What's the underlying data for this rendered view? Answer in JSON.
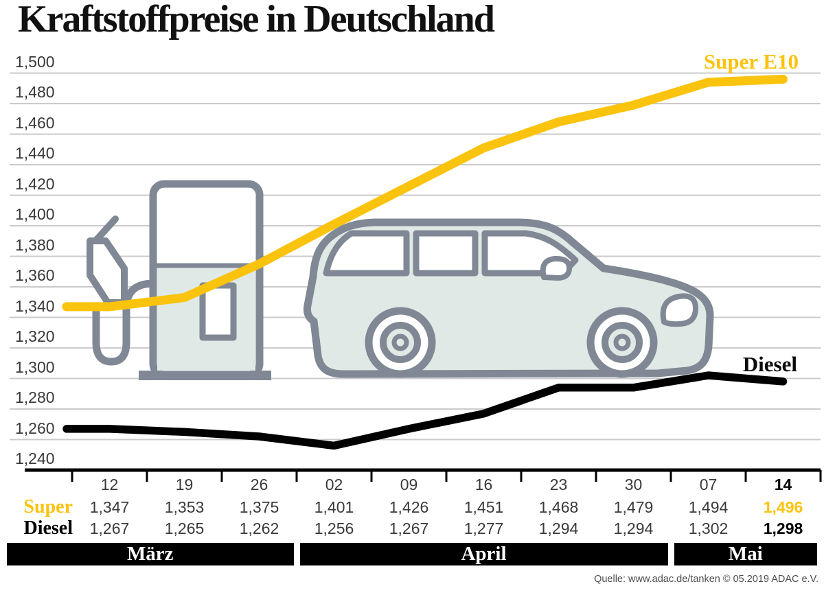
{
  "title": "Kraftstoffpreise in Deutschland",
  "source_note": "Quelle: www.adac.de/tanken   © 05.2019  ADAC e.V.",
  "colors": {
    "super_e10": "#FAC30D",
    "diesel": "#000000",
    "grid": "#CBCBCB",
    "axis": "#000000",
    "graphic_stroke": "#7F8894",
    "graphic_fill": "#DFE9E5",
    "month_bar_bg": "#000000",
    "month_bar_text": "#FFFFFF",
    "number_text": "#3A3A3A",
    "highlight_text": "#000000"
  },
  "chart_data": {
    "type": "line",
    "title": "Kraftstoffpreise in Deutschland",
    "x_tick_labels": [
      "12",
      "19",
      "26",
      "02",
      "09",
      "16",
      "23",
      "30",
      "07",
      "14"
    ],
    "month_bands": [
      {
        "label": "März",
        "from_col": 0,
        "to_col": 2
      },
      {
        "label": "April",
        "from_col": 3,
        "to_col": 7
      },
      {
        "label": "Mai",
        "from_col": 8,
        "to_col": 9
      }
    ],
    "series": [
      {
        "name": "Super E10",
        "color_key": "super_e10",
        "values": [
          1.347,
          1.353,
          1.375,
          1.401,
          1.426,
          1.451,
          1.468,
          1.479,
          1.494,
          1.496
        ]
      },
      {
        "name": "Diesel",
        "color_key": "diesel",
        "values": [
          1.267,
          1.265,
          1.262,
          1.256,
          1.267,
          1.277,
          1.294,
          1.294,
          1.302,
          1.298
        ]
      }
    ],
    "ylim": [
      1.24,
      1.5
    ],
    "ytick_step": 0.02,
    "ytick_labels": [
      "1,240",
      "1,260",
      "1,280",
      "1,300",
      "1,320",
      "1,340",
      "1,360",
      "1,380",
      "1,400",
      "1,420",
      "1,440",
      "1,460",
      "1,480",
      "1,500"
    ],
    "grid": true,
    "legend_position": "inline-right"
  },
  "table": {
    "rows": [
      {
        "label": "Super",
        "color_key": "super_e10",
        "values": [
          "1,347",
          "1,353",
          "1,375",
          "1,401",
          "1,426",
          "1,451",
          "1,468",
          "1,479",
          "1,494",
          "1,496"
        ]
      },
      {
        "label": "Diesel",
        "color_key": "diesel",
        "values": [
          "1,267",
          "1,265",
          "1,262",
          "1,256",
          "1,267",
          "1,277",
          "1,294",
          "1,294",
          "1,302",
          "1,298"
        ]
      }
    ]
  }
}
